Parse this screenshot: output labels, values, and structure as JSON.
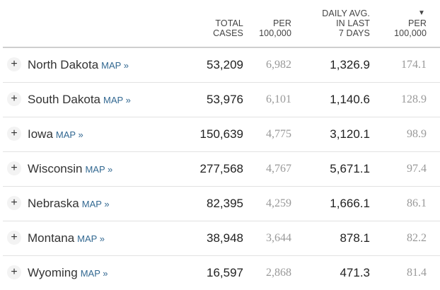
{
  "headers": {
    "total_cases": [
      "TOTAL",
      "CASES"
    ],
    "per_100k": [
      "PER",
      "100,000"
    ],
    "daily_avg": [
      "DAILY AVG.",
      "IN LAST",
      "7 DAYS"
    ],
    "sort_arrow": "▼",
    "daily_per_100k": [
      "PER",
      "100,000"
    ]
  },
  "expand_symbol": "+",
  "map_label": "MAP »",
  "rows": [
    {
      "state": "North Dakota",
      "total": "53,209",
      "per100k": "6,982",
      "daily": "1,326.9",
      "daily_per100k": "174.1"
    },
    {
      "state": "South Dakota",
      "total": "53,976",
      "per100k": "6,101",
      "daily": "1,140.6",
      "daily_per100k": "128.9"
    },
    {
      "state": "Iowa",
      "total": "150,639",
      "per100k": "4,775",
      "daily": "3,120.1",
      "daily_per100k": "98.9"
    },
    {
      "state": "Wisconsin",
      "total": "277,568",
      "per100k": "4,767",
      "daily": "5,671.1",
      "daily_per100k": "97.4"
    },
    {
      "state": "Nebraska",
      "total": "82,395",
      "per100k": "4,259",
      "daily": "1,666.1",
      "daily_per100k": "86.1"
    },
    {
      "state": "Montana",
      "total": "38,948",
      "per100k": "3,644",
      "daily": "878.1",
      "daily_per100k": "82.2"
    },
    {
      "state": "Wyoming",
      "total": "16,597",
      "per100k": "2,868",
      "daily": "471.3",
      "daily_per100k": "81.4"
    }
  ],
  "colors": {
    "map_link": "#326891",
    "muted_number": "#999999",
    "primary_number": "#222222",
    "header_rule": "#cfcfcf",
    "row_rule": "#e2e2e2"
  }
}
